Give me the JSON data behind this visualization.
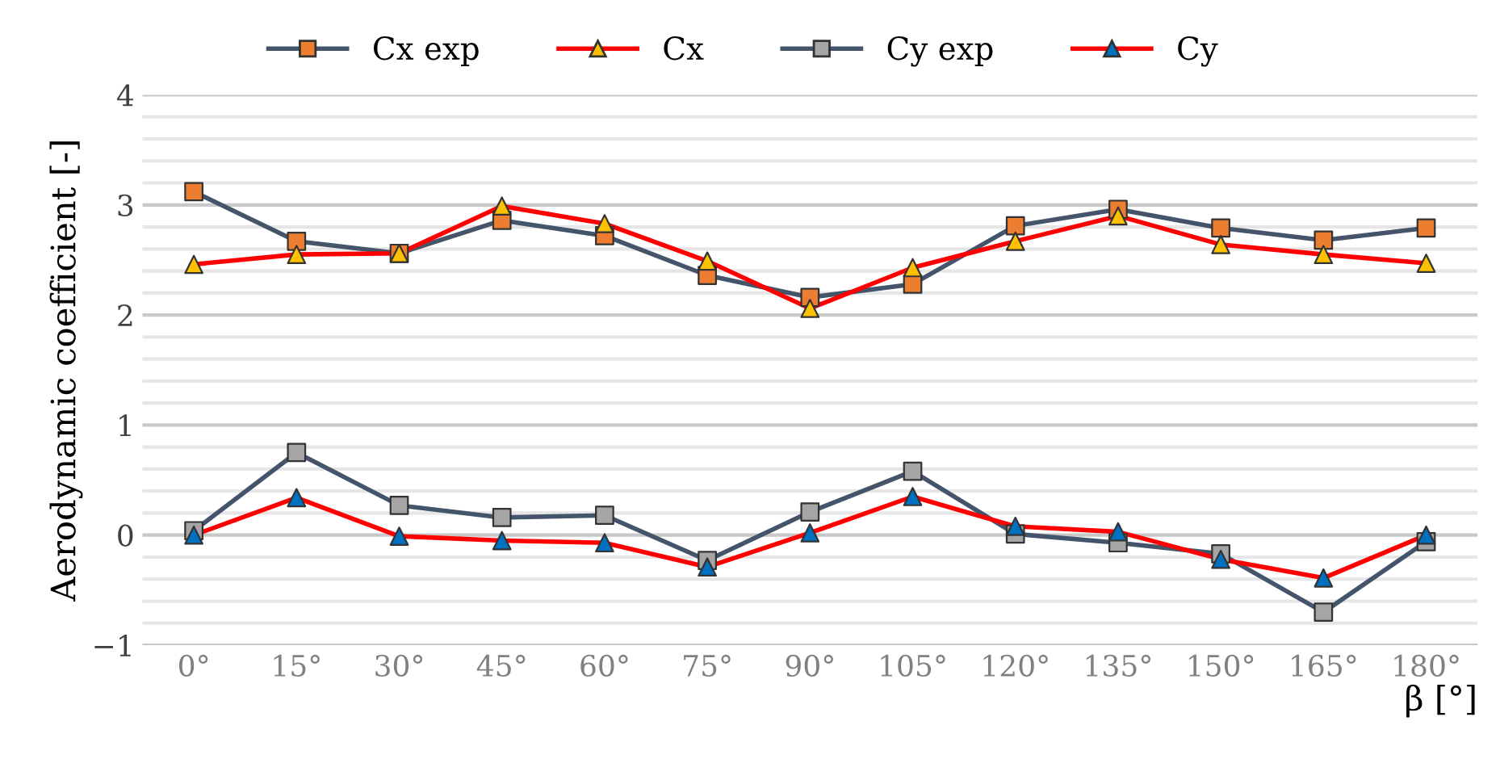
{
  "chart_data": {
    "type": "line",
    "ylabel": "Aerodynamic coefficient [-]",
    "xlabel": "β [°]",
    "categories": [
      "0°",
      "15°",
      "30°",
      "45°",
      "60°",
      "75°",
      "90°",
      "105°",
      "120°",
      "135°",
      "150°",
      "165°",
      "180°"
    ],
    "series": [
      {
        "name": "Cx exp",
        "color": "#44546a",
        "colors": [
          "#ed7d31",
          "#ed7d31",
          "#ed7d31",
          "#ed7d31",
          "#ed7d31",
          "#ed7d31",
          "#ed7d31",
          "#ed7d31",
          "#ed7d31",
          "#ed7d31",
          "#ed7d31",
          "#ed7d31",
          "#ed7d31"
        ],
        "marker": "square",
        "values": [
          3.12,
          2.67,
          2.56,
          2.86,
          2.72,
          2.36,
          2.16,
          2.28,
          2.81,
          2.96,
          2.79,
          2.68,
          2.79
        ]
      },
      {
        "name": "Cx",
        "color": "#ff0000",
        "colors": [
          "#ffc000",
          "#ffc000",
          "#ffc000",
          "#ffc000",
          "#ffc000",
          "#ffc000",
          "#ffc000",
          "#ffc000",
          "#ffc000",
          "#ffc000",
          "#ffc000",
          "#ffc000",
          "#ffc000"
        ],
        "marker": "triangle",
        "values": [
          2.46,
          2.55,
          2.56,
          2.99,
          2.83,
          2.49,
          2.06,
          2.43,
          2.67,
          2.9,
          2.64,
          2.55,
          2.47
        ]
      },
      {
        "name": "Cy exp",
        "color": "#44546a",
        "colors": [
          "#a5a5a5",
          "#a5a5a5",
          "#a5a5a5",
          "#a5a5a5",
          "#a5a5a5",
          "#a5a5a5",
          "#a5a5a5",
          "#a5a5a5",
          "#a5a5a5",
          "#a5a5a5",
          "#a5a5a5",
          "#a5a5a5",
          "#a5a5a5"
        ],
        "marker": "square",
        "values": [
          0.04,
          0.75,
          0.27,
          0.16,
          0.18,
          -0.23,
          0.21,
          0.58,
          0.01,
          -0.07,
          -0.17,
          -0.7,
          -0.06
        ]
      },
      {
        "name": "Cy",
        "color": "#ff0000",
        "colors": [
          "#0070c0",
          "#0070c0",
          "#0070c0",
          "#0070c0",
          "#0070c0",
          "#0070c0",
          "#0070c0",
          "#0070c0",
          "#0070c0",
          "#0070c0",
          "#0070c0",
          "#0070c0",
          "#0070c0"
        ],
        "marker": "triangle",
        "values": [
          0.0,
          0.34,
          -0.01,
          -0.05,
          -0.07,
          -0.29,
          0.02,
          0.35,
          0.08,
          0.03,
          -0.22,
          -0.39,
          0.0
        ]
      }
    ],
    "ylim": [
      -1,
      4
    ],
    "yticks": [
      {
        "value": -1,
        "label": "−1"
      },
      {
        "value": -0.8,
        "label": null
      },
      {
        "value": -0.6,
        "label": null
      },
      {
        "value": -0.4,
        "label": null
      },
      {
        "value": -0.2,
        "label": null
      },
      0,
      {
        "value": 0.2,
        "label": null
      },
      {
        "value": 0.4,
        "label": null
      },
      {
        "value": 0.6,
        "label": null
      },
      {
        "value": 0.8,
        "label": null
      },
      1,
      {
        "value": 1.2,
        "label": null
      },
      {
        "value": 1.4,
        "label": null
      },
      {
        "value": 1.6,
        "label": null
      },
      {
        "value": 1.8,
        "label": null
      },
      2,
      {
        "value": 2.2,
        "label": null
      },
      {
        "value": 2.4,
        "label": null
      },
      {
        "value": 2.6,
        "label": null
      },
      {
        "value": 2.8,
        "label": null
      },
      3,
      {
        "value": 3.2,
        "label": null
      },
      {
        "value": 3.4,
        "label": null
      },
      {
        "value": 3.6,
        "label": null
      },
      {
        "value": 3.8,
        "label": null
      },
      4
    ],
    "grid": "y",
    "legend": "top",
    "line_style": "solid"
  }
}
